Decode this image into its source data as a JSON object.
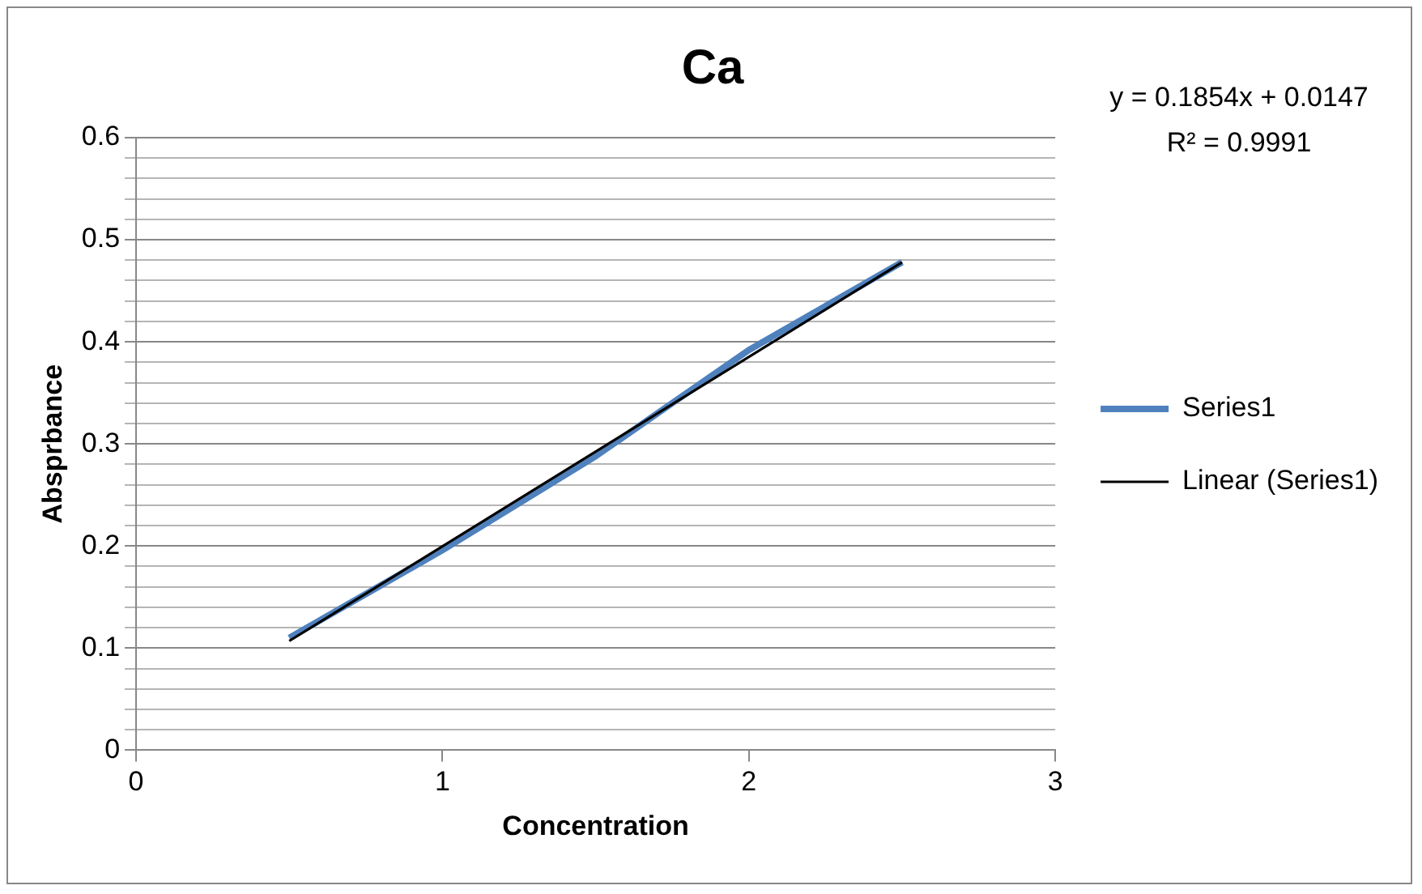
{
  "chart_data": {
    "type": "line",
    "title": "Ca",
    "xlabel": "Concentration",
    "ylabel": "Absprbance",
    "series": [
      {
        "name": "Series1",
        "color": "#4f81bd",
        "x": [
          0.5,
          1,
          1.5,
          2,
          2.5
        ],
        "values": [
          0.11,
          0.196,
          0.288,
          0.392,
          0.478
        ]
      },
      {
        "name": "Linear (Series1)",
        "color": "#000000",
        "x": [
          0.5,
          2.5
        ],
        "values": [
          0.107,
          0.478
        ]
      }
    ],
    "xlim": [
      0,
      3
    ],
    "xticks": [
      0,
      1,
      2,
      3
    ],
    "ylim": [
      0,
      0.6
    ],
    "yticks": [
      0,
      {
        "value": 0.02,
        "label": null
      },
      {
        "value": 0.04,
        "label": null
      },
      {
        "value": 0.06,
        "label": null
      },
      {
        "value": 0.08,
        "label": null
      },
      0.1,
      {
        "value": 0.12,
        "label": null
      },
      {
        "value": 0.14,
        "label": null
      },
      {
        "value": 0.16,
        "label": null
      },
      {
        "value": 0.18,
        "label": null
      },
      0.2,
      {
        "value": 0.22,
        "label": null
      },
      {
        "value": 0.24,
        "label": null
      },
      {
        "value": 0.26,
        "label": null
      },
      {
        "value": 0.28,
        "label": null
      },
      0.3,
      {
        "value": 0.32,
        "label": null
      },
      {
        "value": 0.34,
        "label": null
      },
      {
        "value": 0.36,
        "label": null
      },
      {
        "value": 0.38,
        "label": null
      },
      0.4,
      {
        "value": 0.42,
        "label": null
      },
      {
        "value": 0.44,
        "label": null
      },
      {
        "value": 0.46,
        "label": null
      },
      {
        "value": 0.48,
        "label": null
      },
      0.5,
      {
        "value": 0.52,
        "label": null
      },
      {
        "value": 0.54,
        "label": null
      },
      {
        "value": 0.56,
        "label": null
      },
      {
        "value": 0.58,
        "label": null
      },
      0.6
    ],
    "grid": "y",
    "legend": "right",
    "marker": "none",
    "annotations": [
      "y = 0.1854x + 0.0147",
      "R² = 0.9991"
    ]
  }
}
